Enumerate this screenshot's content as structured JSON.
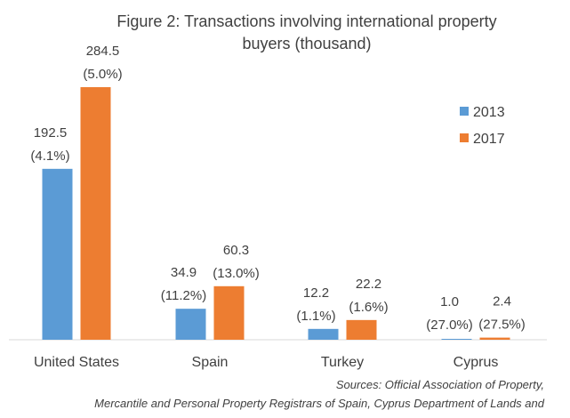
{
  "chart_data": {
    "type": "bar",
    "title": [
      "Figure 2: Transactions involving international property",
      "buyers (thousand)"
    ],
    "categories": [
      "United States",
      "Spain",
      "Turkey",
      "Cyprus"
    ],
    "series": [
      {
        "name": "2013",
        "color": "#5b9bd5",
        "values": [
          192.5,
          34.9,
          12.2,
          1.0
        ],
        "labels": [
          "192.5",
          "34.9",
          "12.2",
          "1.0"
        ],
        "shares": [
          "(4.1%)",
          "(11.2%)",
          "(1.1%)",
          "(27.0%)"
        ]
      },
      {
        "name": "2017",
        "color": "#ed7d31",
        "values": [
          284.5,
          60.3,
          22.2,
          2.4
        ],
        "labels": [
          "284.5",
          "60.3",
          "22.2",
          "2.4"
        ],
        "shares": [
          "(5.0%)",
          "(13.0%)",
          "(1.6%)",
          "(27.5%)"
        ]
      }
    ],
    "ylim": [
      0,
      290
    ],
    "grid": false,
    "legend": "top-right",
    "sources": [
      "Sources: Official Association of Property,",
      "Mercantile and Personal Property Registrars of Spain, Cyprus Department of Lands and"
    ]
  }
}
